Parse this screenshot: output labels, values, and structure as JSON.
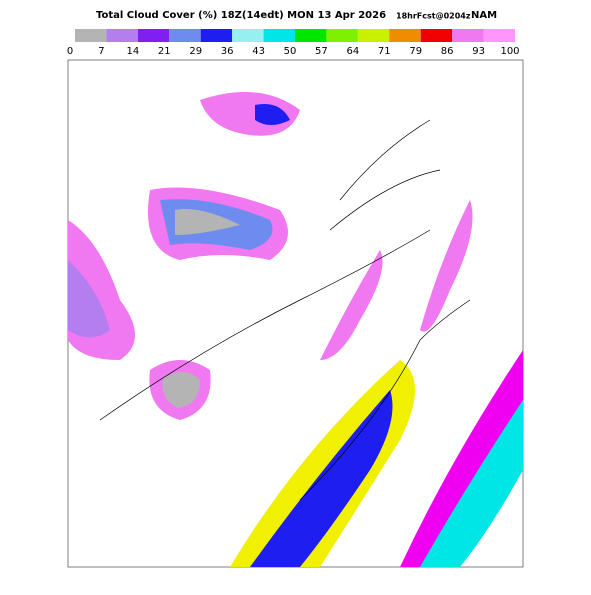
{
  "header": {
    "title": "Total Cloud Cover (%) 18Z(14edt) MON 13 Apr 2026",
    "forecast": "18hrFcst@0204z",
    "model": "NAM"
  },
  "colorbar": {
    "levels": [
      0,
      7,
      14,
      21,
      29,
      36,
      43,
      50,
      57,
      64,
      71,
      79,
      86,
      93,
      100
    ],
    "colors": [
      "#b4b4b4",
      "#b47ef0",
      "#7f1ff0",
      "#6e8cf0",
      "#1e1ef0",
      "#96f0f0",
      "#00e6e6",
      "#00e600",
      "#7ff000",
      "#c8f000",
      "#f08c00",
      "#f00000",
      "#f078f0",
      "#ff96ff"
    ]
  }
}
